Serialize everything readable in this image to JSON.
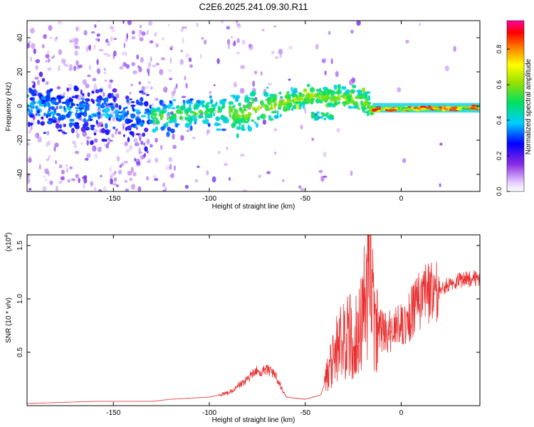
{
  "title": "C2E6.2025.241.09.30.R11",
  "colors": {
    "snr_line": "#e83030",
    "axis": "#000000"
  },
  "chart_data": [
    {
      "type": "heatmap",
      "xlabel": "Height of straight line (km)",
      "ylabel": "Frequency (Hz)",
      "xlim": [
        -195,
        41
      ],
      "ylim": [
        -50,
        50
      ],
      "xticks": [
        -150,
        -100,
        -50,
        0
      ],
      "yticks": [
        -40,
        -20,
        0,
        20,
        40
      ],
      "colorbar": {
        "label": "Normalized spectral amplitude",
        "range": [
          0,
          0.96
        ],
        "ticks": [
          "0.0",
          "0.2",
          "0.4",
          "0.6",
          "0.8"
        ],
        "colormap": "rainbow (white→violet→blue→cyan→green→yellow→red→magenta)"
      },
      "ridge": [
        {
          "x": -195,
          "f": 0
        },
        {
          "x": -150,
          "f": -4
        },
        {
          "x": -125,
          "f": -6
        },
        {
          "x": -100,
          "f": -3
        },
        {
          "x": -85,
          "f": -5
        },
        {
          "x": -70,
          "f": 0
        },
        {
          "x": -55,
          "f": 4
        },
        {
          "x": -45,
          "f": 6
        },
        {
          "x": -35,
          "f": 5
        },
        {
          "x": -20,
          "f": 3
        },
        {
          "x": -15,
          "f": -2
        },
        {
          "x": 41,
          "f": -1
        }
      ]
    },
    {
      "type": "line",
      "xlabel": "Height of straight line (km)",
      "ylabel": "SNR (10 * v/v)",
      "yscale_label": "(x10",
      "yscale_exp": "4",
      "yscale_close": ")",
      "xlim": [
        -195,
        41
      ],
      "ylim": [
        0,
        1.6
      ],
      "xticks": [
        -150,
        -100,
        -50,
        0
      ],
      "yticks": [
        0.5,
        1.0,
        1.5
      ],
      "ytick_labels": [
        "0.5",
        "1.0",
        "1.5"
      ],
      "series": [
        {
          "x": [
            -195,
            -160,
            -130,
            -120,
            -100,
            -90,
            -82,
            -76,
            -70,
            -66,
            -60,
            -50,
            -42,
            -38,
            -33,
            -28,
            -22,
            -18,
            -16,
            -14,
            -10,
            -5,
            0,
            5,
            10,
            20,
            30,
            41
          ],
          "y": [
            0.02,
            0.04,
            0.04,
            0.06,
            0.08,
            0.12,
            0.22,
            0.32,
            0.34,
            0.3,
            0.08,
            0.06,
            0.1,
            0.3,
            0.55,
            0.65,
            0.75,
            1.0,
            1.55,
            0.75,
            0.7,
            0.7,
            0.75,
            0.85,
            1.0,
            1.1,
            1.17,
            1.2
          ]
        }
      ]
    }
  ]
}
